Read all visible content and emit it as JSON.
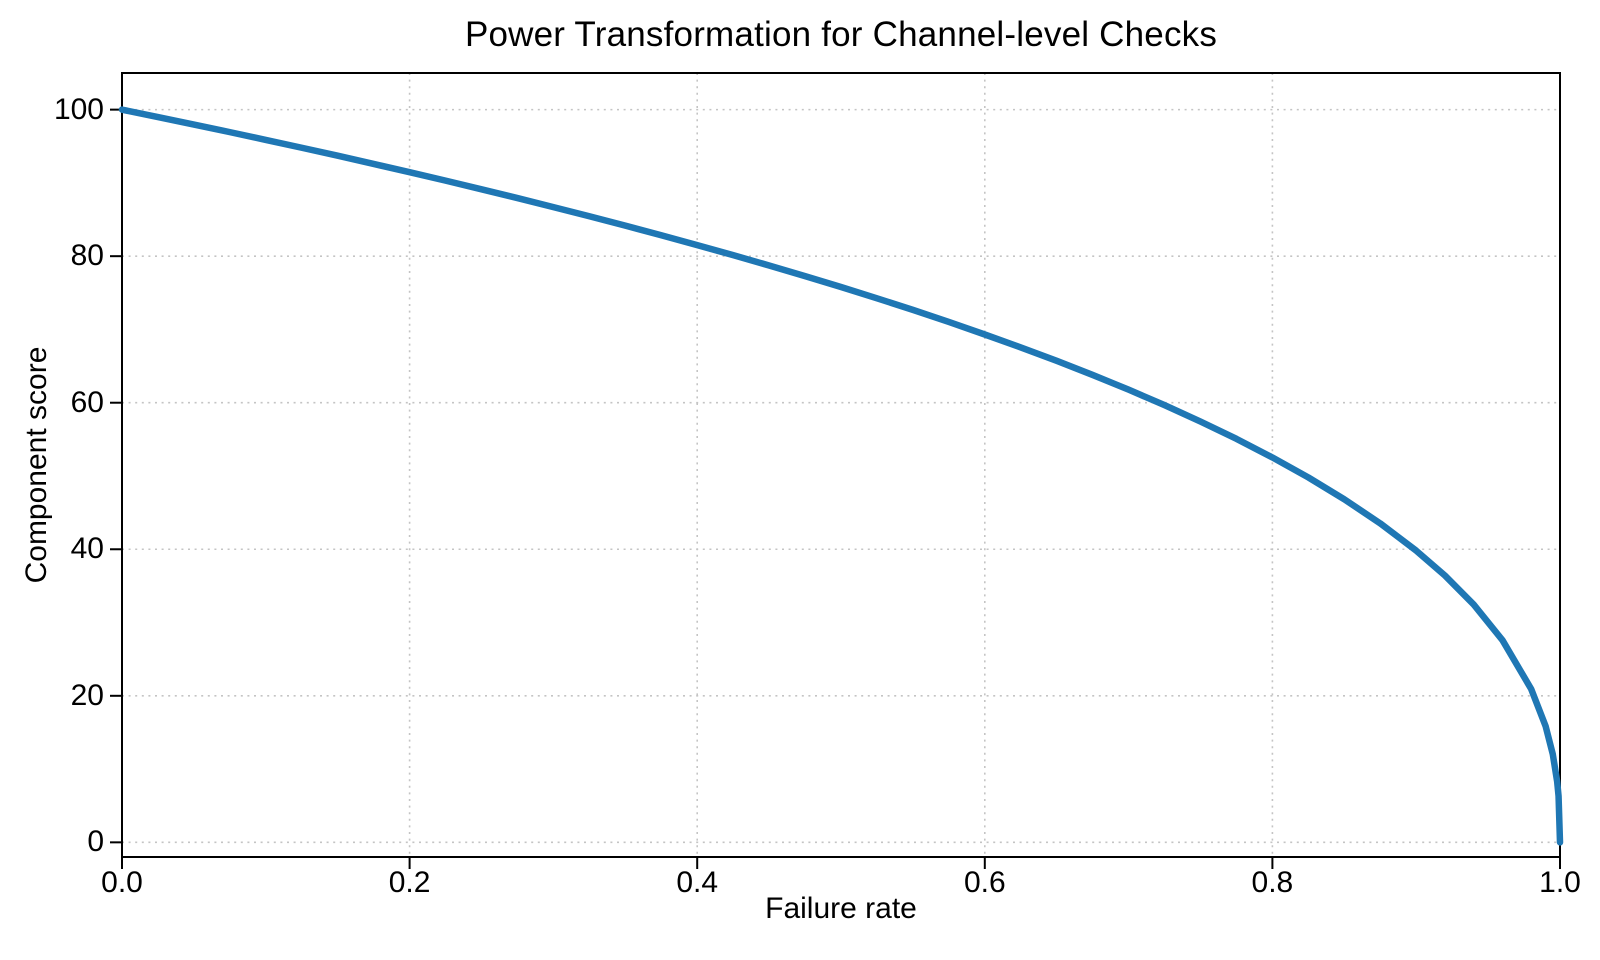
{
  "chart_data": {
    "type": "line",
    "title": "Power Transformation for Channel-level Checks",
    "xlabel": "Failure rate",
    "ylabel": "Component score",
    "xlim": [
      0.0,
      1.0
    ],
    "ylim": [
      -2,
      105
    ],
    "x_ticks": [
      0.0,
      0.2,
      0.4,
      0.6,
      0.8,
      1.0
    ],
    "x_tick_labels": [
      "0.0",
      "0.2",
      "0.4",
      "0.6",
      "0.8",
      "1.0"
    ],
    "y_ticks": [
      0,
      20,
      40,
      60,
      80,
      100
    ],
    "y_tick_labels": [
      "0",
      "20",
      "40",
      "60",
      "80",
      "100"
    ],
    "grid": true,
    "grid_style": "dotted",
    "legend": false,
    "colors": {
      "line": "#1f77b4",
      "grid": "#c4c4c4",
      "spine": "#000000",
      "text": "#000000"
    },
    "series": [
      {
        "name": "Component score vs Failure rate",
        "color": "#1f77b4",
        "line_width": 6.5,
        "points": [
          [
            0.0,
            100.0
          ],
          [
            0.025,
            98.99
          ],
          [
            0.05,
            97.97
          ],
          [
            0.075,
            96.93
          ],
          [
            0.1,
            95.87
          ],
          [
            0.125,
            94.8
          ],
          [
            0.15,
            93.71
          ],
          [
            0.175,
            92.59
          ],
          [
            0.2,
            91.46
          ],
          [
            0.225,
            90.31
          ],
          [
            0.25,
            89.13
          ],
          [
            0.275,
            87.93
          ],
          [
            0.3,
            86.7
          ],
          [
            0.325,
            85.45
          ],
          [
            0.35,
            84.17
          ],
          [
            0.375,
            82.86
          ],
          [
            0.4,
            81.51
          ],
          [
            0.425,
            80.14
          ],
          [
            0.45,
            78.73
          ],
          [
            0.475,
            77.28
          ],
          [
            0.5,
            75.79
          ],
          [
            0.525,
            74.25
          ],
          [
            0.55,
            72.67
          ],
          [
            0.575,
            71.02
          ],
          [
            0.6,
            69.31
          ],
          [
            0.625,
            67.55
          ],
          [
            0.65,
            65.72
          ],
          [
            0.675,
            63.79
          ],
          [
            0.7,
            61.78
          ],
          [
            0.725,
            59.67
          ],
          [
            0.75,
            57.43
          ],
          [
            0.775,
            55.07
          ],
          [
            0.8,
            52.53
          ],
          [
            0.825,
            49.8
          ],
          [
            0.85,
            46.82
          ],
          [
            0.875,
            43.53
          ],
          [
            0.9,
            39.81
          ],
          [
            0.92,
            36.41
          ],
          [
            0.94,
            32.45
          ],
          [
            0.96,
            27.59
          ],
          [
            0.98,
            20.91
          ],
          [
            0.99,
            15.85
          ],
          [
            0.995,
            12.01
          ],
          [
            0.998,
            8.33
          ],
          [
            0.999,
            6.31
          ],
          [
            1.0,
            0.0
          ]
        ]
      }
    ]
  }
}
